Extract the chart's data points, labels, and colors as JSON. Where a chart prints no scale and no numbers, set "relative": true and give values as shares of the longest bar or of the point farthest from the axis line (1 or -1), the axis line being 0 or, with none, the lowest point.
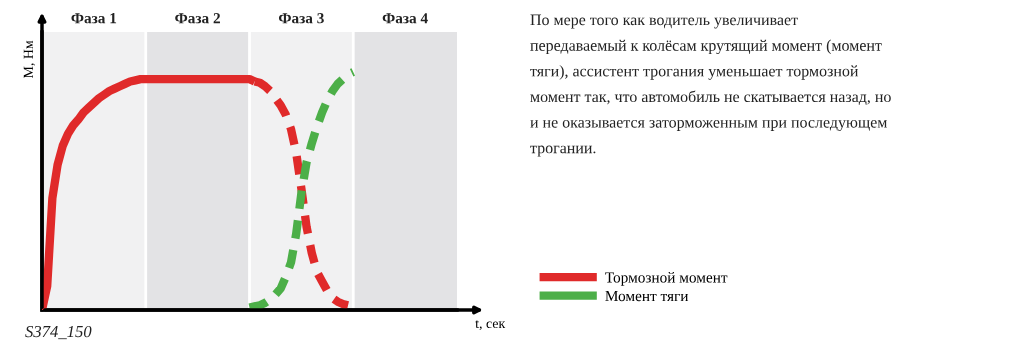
{
  "chart_data": {
    "type": "line",
    "relative": true,
    "ylabel": "М, Нм",
    "xlabel": "t, сек",
    "categories": [
      null,
      null,
      null,
      null,
      null,
      null,
      null,
      null,
      null,
      null,
      null,
      null,
      null,
      null,
      null,
      null,
      null,
      null,
      null,
      null,
      null,
      null,
      null,
      null,
      null,
      null,
      null,
      null,
      null,
      null,
      null,
      null,
      null,
      null,
      null,
      null,
      null,
      null,
      null,
      null,
      null,
      null,
      null,
      null,
      null,
      null,
      null,
      null,
      null,
      null,
      null,
      null,
      null,
      null,
      null,
      null,
      null,
      null,
      null,
      null,
      null,
      null,
      null,
      null,
      null,
      null,
      null,
      null,
      null,
      null,
      null,
      null,
      null,
      null,
      null,
      null,
      null,
      null,
      null,
      null,
      null
    ],
    "tick_labels": false,
    "legend": "right",
    "marker": "none",
    "grid": "x",
    "series": [
      {
        "name": "Тормозной момент",
        "color": "#e02a2a",
        "line_style": "solid",
        "values": [
          0,
          0.1,
          0.47,
          0.61,
          0.69,
          0.74,
          0.775,
          0.8,
          0.83,
          0.85,
          0.87,
          0.89,
          0.905,
          0.92,
          0.93,
          0.94,
          0.95,
          0.96,
          0.965,
          0.97,
          0.97,
          0.97,
          0.97,
          0.97,
          0.97,
          0.97,
          0.97,
          0.97,
          0.97,
          0.97,
          0.97,
          0.97,
          0.97,
          0.97,
          0.97,
          0.97,
          0.97,
          0.97,
          0.97,
          0.97,
          0.97,
          0.96,
          null,
          null,
          null,
          null,
          null,
          null,
          null,
          null,
          null,
          null,
          null,
          null,
          null,
          null,
          null,
          null,
          null,
          null,
          null,
          null,
          null,
          null,
          null,
          null,
          null,
          null,
          null,
          null,
          null,
          null,
          null,
          null,
          null,
          null,
          null,
          null,
          null,
          null,
          null
        ]
      },
      {
        "color": "#e02a2a",
        "line_style": "dashed",
        "values": [
          null,
          null,
          null,
          null,
          null,
          null,
          null,
          null,
          null,
          null,
          null,
          null,
          null,
          null,
          null,
          null,
          null,
          null,
          null,
          null,
          null,
          null,
          null,
          null,
          null,
          null,
          null,
          null,
          null,
          null,
          null,
          null,
          null,
          null,
          null,
          null,
          null,
          null,
          null,
          null,
          null,
          0.96,
          0.955,
          0.94,
          0.92,
          0.89,
          0.86,
          0.82,
          0.76,
          0.66,
          0.51,
          0.35,
          0.24,
          0.16,
          0.12,
          0.08,
          0.05,
          0.035,
          0.025,
          0.02,
          null,
          null,
          null,
          null,
          null,
          null,
          null,
          null,
          null,
          null,
          null,
          null,
          null,
          null,
          null,
          null,
          null,
          null,
          null,
          null,
          null
        ]
      },
      {
        "name": "Момент тяги",
        "color": "#4caf48",
        "line_style": "dashed",
        "values": [
          null,
          null,
          null,
          null,
          null,
          null,
          null,
          null,
          null,
          null,
          null,
          null,
          null,
          null,
          null,
          null,
          null,
          null,
          null,
          null,
          null,
          null,
          null,
          null,
          null,
          null,
          null,
          null,
          null,
          null,
          null,
          null,
          null,
          null,
          null,
          null,
          null,
          null,
          null,
          null,
          0.01,
          0.015,
          0.02,
          0.03,
          0.045,
          0.065,
          0.09,
          0.14,
          0.2,
          0.32,
          0.49,
          0.62,
          0.7,
          0.77,
          0.83,
          0.88,
          0.92,
          0.95,
          0.97,
          0.99,
          1,
          null,
          null,
          null,
          null,
          null,
          null,
          null,
          null,
          null,
          null,
          null,
          null,
          null,
          null,
          null,
          null,
          null,
          null,
          null,
          null
        ]
      }
    ],
    "annotations": [
      "Фаза 1",
      "Фаза 2",
      "Фаза 3",
      "Фаза 4",
      "S374_150",
      "По мере того как водитель увеличивает\nпередаваемый к колёсам крутящий момент (момент\nтяги), ассистент трогания уменьшает тормозной\nмомент так, что автомобиль не скатывается назад, но\nи не оказывается заторможенным при последующем\nтрогании."
    ]
  }
}
